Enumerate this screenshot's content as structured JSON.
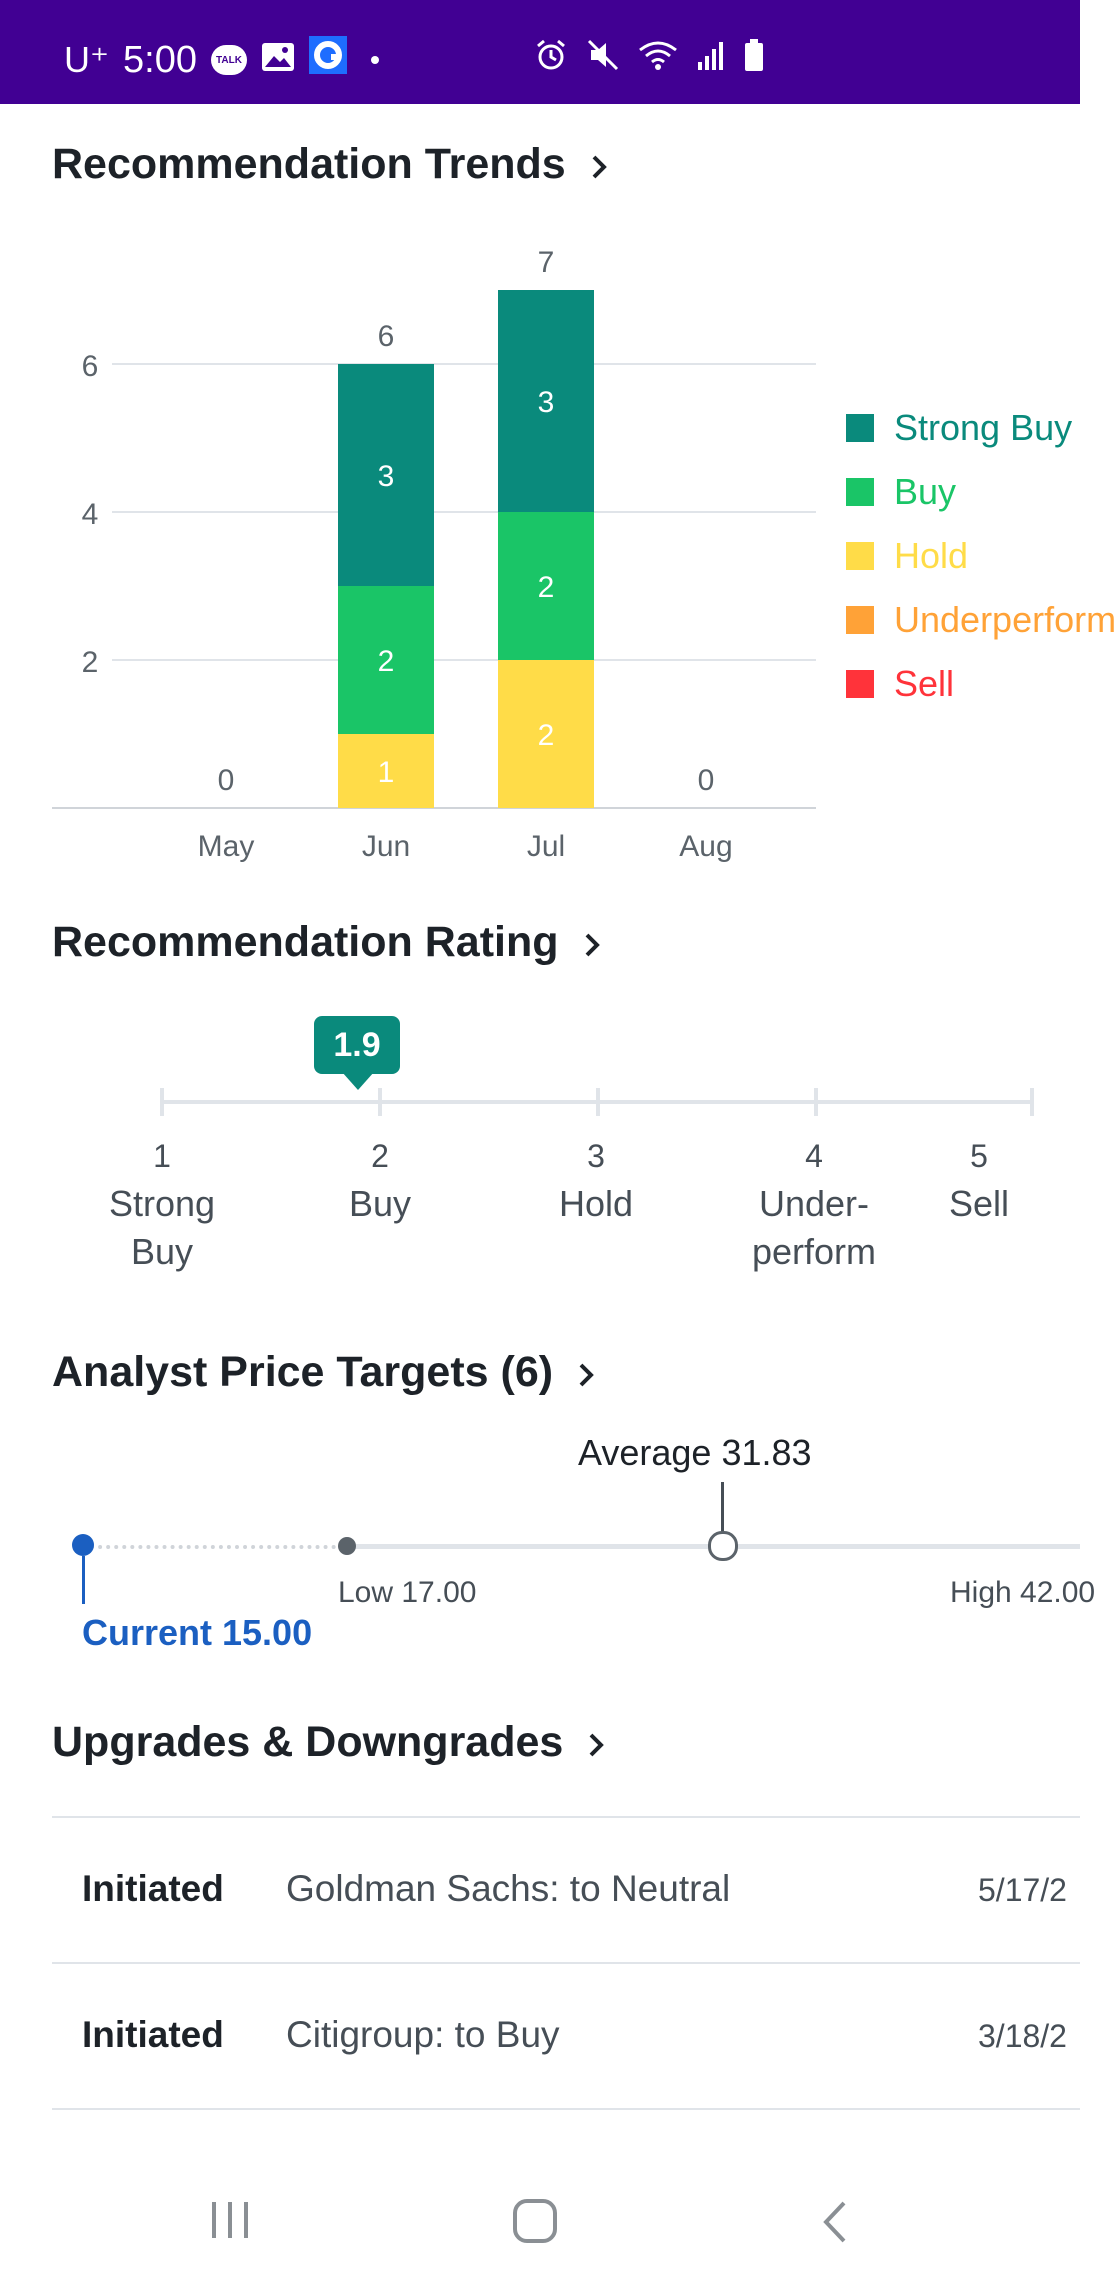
{
  "status_bar": {
    "carrier": "U⁺",
    "time": "5:00",
    "talk_badge": "TALK",
    "bg_color": "#410093"
  },
  "trends": {
    "title": "Recommendation Trends",
    "chart_data": {
      "type": "bar",
      "stacked": true,
      "categories": [
        "May",
        "Jun",
        "Jul",
        "Aug"
      ],
      "totals": [
        0,
        6,
        7,
        0
      ],
      "series": [
        {
          "name": "Strong Buy",
          "color": "#0a8a7c",
          "values": [
            0,
            3,
            3,
            0
          ]
        },
        {
          "name": "Buy",
          "color": "#1ac567",
          "values": [
            0,
            2,
            2,
            0
          ]
        },
        {
          "name": "Hold",
          "color": "#ffdc48",
          "values": [
            0,
            1,
            2,
            0
          ]
        },
        {
          "name": "Underperform",
          "color": "#ffa237",
          "values": [
            0,
            0,
            0,
            0
          ]
        },
        {
          "name": "Sell",
          "color": "#ff333a",
          "values": [
            0,
            0,
            0,
            0
          ]
        }
      ],
      "y_ticks": [
        2,
        4,
        6
      ],
      "ylim": [
        0,
        7
      ],
      "grid": true,
      "legend_placement": "right"
    }
  },
  "rating": {
    "title": "Recommendation Rating",
    "value": "1.9",
    "scale": [
      {
        "num": "1",
        "text": "Strong Buy"
      },
      {
        "num": "2",
        "text": "Buy"
      },
      {
        "num": "3",
        "text": "Hold"
      },
      {
        "num": "4",
        "text": "Under-perform"
      },
      {
        "num": "5",
        "text": "Sell"
      }
    ]
  },
  "price_targets": {
    "title": "Analyst Price Targets (6)",
    "average_label": "Average 31.83",
    "low_label": "Low 17.00",
    "high_label": "High 42.00",
    "current_label": "Current 15.00",
    "current_color": "#1b5fc1"
  },
  "upgrades": {
    "title": "Upgrades & Downgrades",
    "rows": [
      {
        "action": "Initiated",
        "desc": "Goldman Sachs: to Neutral",
        "date": "5/17/2"
      },
      {
        "action": "Initiated",
        "desc": "Citigroup: to Buy",
        "date": "3/18/2"
      }
    ]
  }
}
